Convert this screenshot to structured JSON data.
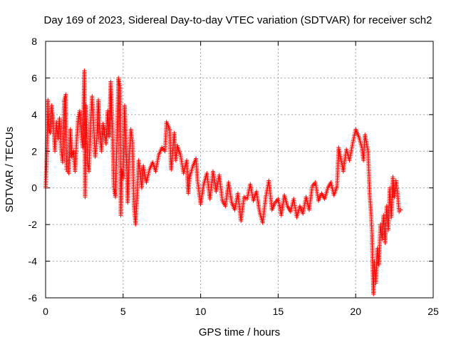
{
  "chart_data": {
    "type": "scatter",
    "title": "Day 169 of 2023, Sidereal Day-to-day VTEC variation (SDTVAR) for receiver sch2",
    "xlabel": "GPS time / hours",
    "ylabel": "SDTVAR / TECUs",
    "xlim": [
      0,
      25
    ],
    "ylim": [
      -6,
      8
    ],
    "xticks": [
      0,
      5,
      10,
      15,
      20,
      25
    ],
    "yticks": [
      -6,
      -4,
      -2,
      0,
      2,
      4,
      6,
      8
    ],
    "xtick_labels": [
      "0",
      "5",
      "10",
      "15",
      "20",
      "25"
    ],
    "ytick_labels": [
      "-6",
      "-4",
      "-2",
      "0",
      "2",
      "4",
      "6",
      "8"
    ],
    "grid": true,
    "marker": "+",
    "series": [
      {
        "name": "sch2",
        "color": "#ff0000",
        "points": [
          [
            0.0,
            0.0
          ],
          [
            0.05,
            1.0
          ],
          [
            0.1,
            2.5
          ],
          [
            0.15,
            4.8
          ],
          [
            0.2,
            3.2
          ],
          [
            0.3,
            3.0
          ],
          [
            0.4,
            4.5
          ],
          [
            0.5,
            3.5
          ],
          [
            0.6,
            2.0
          ],
          [
            0.7,
            3.6
          ],
          [
            0.8,
            2.7
          ],
          [
            0.9,
            3.8
          ],
          [
            1.0,
            2.1
          ],
          [
            1.1,
            1.4
          ],
          [
            1.2,
            4.8
          ],
          [
            1.3,
            5.1
          ],
          [
            1.35,
            1.0
          ],
          [
            1.5,
            0.8
          ],
          [
            1.6,
            3.2
          ],
          [
            1.7,
            1.7
          ],
          [
            1.8,
            2.0
          ],
          [
            1.9,
            0.9
          ],
          [
            2.0,
            2.5
          ],
          [
            2.1,
            3.8
          ],
          [
            2.2,
            4.2
          ],
          [
            2.3,
            3.0
          ],
          [
            2.4,
            2.2
          ],
          [
            2.5,
            6.4
          ],
          [
            2.55,
            -0.5
          ],
          [
            2.6,
            4.5
          ],
          [
            2.7,
            1.5
          ],
          [
            2.8,
            0.9
          ],
          [
            2.9,
            3.5
          ],
          [
            3.0,
            5.0
          ],
          [
            3.1,
            3.4
          ],
          [
            3.2,
            1.7
          ],
          [
            3.3,
            2.6
          ],
          [
            3.4,
            4.8
          ],
          [
            3.5,
            3.0
          ],
          [
            3.6,
            2.0
          ],
          [
            3.7,
            3.5
          ],
          [
            3.8,
            3.1
          ],
          [
            3.9,
            2.4
          ],
          [
            4.0,
            4.2
          ],
          [
            4.1,
            2.8
          ],
          [
            4.2,
            5.8
          ],
          [
            4.3,
            3.6
          ],
          [
            4.4,
            0.0
          ],
          [
            4.5,
            -0.5
          ],
          [
            4.6,
            2.5
          ],
          [
            4.7,
            6.0
          ],
          [
            4.8,
            5.5
          ],
          [
            4.85,
            -1.5
          ],
          [
            4.9,
            1.0
          ],
          [
            5.0,
            0.5
          ],
          [
            5.1,
            4.5
          ],
          [
            5.2,
            2.0
          ],
          [
            5.3,
            -0.8
          ],
          [
            5.4,
            1.8
          ],
          [
            5.5,
            3.2
          ],
          [
            5.6,
            2.5
          ],
          [
            5.7,
            -1.0
          ],
          [
            5.8,
            -2.0
          ],
          [
            5.9,
            -0.5
          ],
          [
            6.0,
            1.5
          ],
          [
            6.1,
            0.8
          ],
          [
            6.2,
            0.0
          ],
          [
            6.3,
            1.2
          ],
          [
            6.5,
            0.3
          ],
          [
            6.7,
            1.0
          ],
          [
            6.9,
            1.4
          ],
          [
            7.1,
            0.9
          ],
          [
            7.3,
            1.8
          ],
          [
            7.5,
            2.2
          ],
          [
            7.7,
            2.0
          ],
          [
            7.8,
            3.6
          ],
          [
            8.0,
            3.2
          ],
          [
            8.1,
            1.0
          ],
          [
            8.3,
            3.0
          ],
          [
            8.4,
            1.5
          ],
          [
            8.5,
            2.3
          ],
          [
            8.7,
            1.8
          ],
          [
            8.9,
            0.8
          ],
          [
            9.1,
            1.5
          ],
          [
            9.2,
            -0.3
          ],
          [
            9.3,
            0.6
          ],
          [
            9.5,
            1.2
          ],
          [
            9.7,
            1.6
          ],
          [
            9.8,
            0.4
          ],
          [
            10.0,
            -0.9
          ],
          [
            10.2,
            0.2
          ],
          [
            10.4,
            0.8
          ],
          [
            10.6,
            -0.6
          ],
          [
            10.8,
            0.9
          ],
          [
            11.0,
            -0.2
          ],
          [
            11.2,
            0.7
          ],
          [
            11.4,
            -0.7
          ],
          [
            11.6,
            -1.0
          ],
          [
            11.8,
            0.3
          ],
          [
            12.0,
            -0.8
          ],
          [
            12.2,
            -1.2
          ],
          [
            12.4,
            -0.3
          ],
          [
            12.6,
            -1.8
          ],
          [
            12.8,
            -0.5
          ],
          [
            13.0,
            -0.6
          ],
          [
            13.2,
            0.2
          ],
          [
            13.4,
            -0.7
          ],
          [
            13.6,
            -0.2
          ],
          [
            13.8,
            -1.3
          ],
          [
            14.0,
            -1.9
          ],
          [
            14.2,
            -0.5
          ],
          [
            14.4,
            0.4
          ],
          [
            14.6,
            -1.2
          ],
          [
            14.8,
            -0.8
          ],
          [
            15.0,
            -0.6
          ],
          [
            15.2,
            -1.5
          ],
          [
            15.4,
            -0.4
          ],
          [
            15.6,
            -1.0
          ],
          [
            15.8,
            -1.3
          ],
          [
            16.0,
            -0.6
          ],
          [
            16.2,
            -1.6
          ],
          [
            16.4,
            -1.0
          ],
          [
            16.6,
            -1.4
          ],
          [
            16.8,
            -0.5
          ],
          [
            17.0,
            -1.2
          ],
          [
            17.2,
            0.1
          ],
          [
            17.4,
            0.3
          ],
          [
            17.6,
            -0.7
          ],
          [
            17.8,
            -0.3
          ],
          [
            18.0,
            -0.6
          ],
          [
            18.2,
            0.0
          ],
          [
            18.4,
            0.3
          ],
          [
            18.6,
            -0.4
          ],
          [
            18.8,
            0.1
          ],
          [
            18.9,
            2.2
          ],
          [
            19.0,
            1.8
          ],
          [
            19.2,
            0.9
          ],
          [
            19.4,
            2.1
          ],
          [
            19.6,
            1.5
          ],
          [
            19.8,
            2.4
          ],
          [
            20.0,
            3.2
          ],
          [
            20.2,
            2.8
          ],
          [
            20.4,
            2.2
          ],
          [
            20.5,
            1.5
          ],
          [
            20.6,
            2.9
          ],
          [
            20.8,
            2.0
          ],
          [
            20.9,
            -0.3
          ],
          [
            21.0,
            -1.5
          ],
          [
            21.05,
            -2.5
          ],
          [
            21.1,
            -4.5
          ],
          [
            21.15,
            -5.8
          ],
          [
            21.2,
            -4.0
          ],
          [
            21.3,
            -5.2
          ],
          [
            21.4,
            -3.3
          ],
          [
            21.5,
            -4.2
          ],
          [
            21.6,
            -2.0
          ],
          [
            21.7,
            -2.8
          ],
          [
            21.8,
            -1.5
          ],
          [
            21.9,
            -3.0
          ],
          [
            22.0,
            -1.0
          ],
          [
            22.1,
            -2.3
          ],
          [
            22.2,
            0.0
          ],
          [
            22.3,
            -1.6
          ],
          [
            22.4,
            0.6
          ],
          [
            22.5,
            -0.5
          ],
          [
            22.6,
            0.4
          ],
          [
            22.7,
            -0.3
          ],
          [
            22.8,
            -1.3
          ],
          [
            22.9,
            -1.2
          ]
        ]
      }
    ]
  }
}
